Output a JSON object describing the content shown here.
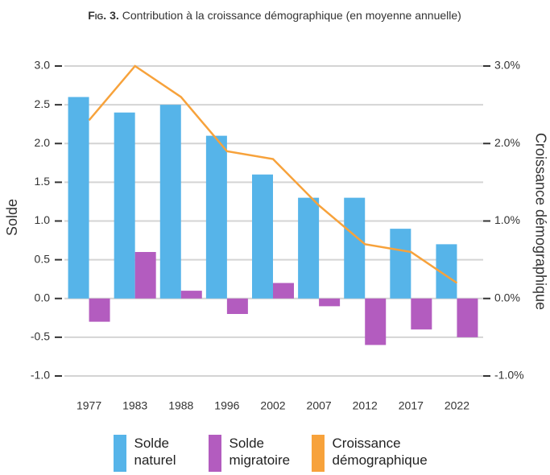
{
  "chart_data": {
    "type": "bar",
    "title_prefix": "Fig. 3.",
    "title": "Contribution à la croissance démographique (en moyenne annuelle)",
    "ylabel": "Solde",
    "y2label": "Croissance démographique",
    "categories": [
      "1977",
      "1983",
      "1988",
      "1996",
      "2002",
      "2007",
      "2012",
      "2017",
      "2022"
    ],
    "series": [
      {
        "name": "Solde naturel",
        "type": "bar",
        "color": "#56b4e9",
        "values": [
          2.6,
          2.4,
          2.5,
          2.1,
          1.6,
          1.3,
          1.3,
          0.9,
          0.7
        ]
      },
      {
        "name": "Solde migratoire",
        "type": "bar",
        "color": "#b35cbf",
        "values": [
          -0.3,
          0.6,
          0.1,
          -0.2,
          0.2,
          -0.1,
          -0.6,
          -0.4,
          -0.5
        ]
      },
      {
        "name": "Croissance démographique",
        "type": "line",
        "axis": "y2",
        "color": "#f7a23b",
        "values": [
          2.3,
          3.0,
          2.6,
          1.9,
          1.8,
          1.2,
          0.7,
          0.6,
          0.2
        ]
      }
    ],
    "ylim": [
      -1,
      3
    ],
    "yticks": [
      {
        "value": -1,
        "label": "-1.0"
      },
      -0.5,
      {
        "value": 0,
        "label": "0.0"
      },
      0.5,
      {
        "value": 1,
        "label": "1.0"
      },
      1.5,
      {
        "value": 2,
        "label": "2.0"
      },
      2.5,
      {
        "value": 3,
        "label": "3.0"
      }
    ],
    "y2lim": [
      -1,
      3
    ],
    "y2ticks": [
      {
        "value": -1,
        "label": "-1.0%"
      },
      {
        "value": 0,
        "label": "0.0%"
      },
      {
        "value": 1,
        "label": "1.0%"
      },
      {
        "value": 2,
        "label": "2.0%"
      },
      {
        "value": 3,
        "label": "3.0%"
      }
    ],
    "grid": true,
    "legend": "bottom"
  }
}
